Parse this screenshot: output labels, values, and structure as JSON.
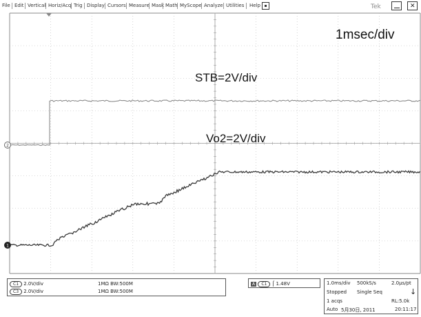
{
  "menu": {
    "items": [
      "File",
      "Edit",
      "Vertical",
      "Horiz/Acq",
      "Trig",
      "Display",
      "Cursors",
      "Measure",
      "Mask",
      "Math",
      "MyScope",
      "Analyze",
      "Utilities",
      "Help"
    ],
    "logo": "Tek"
  },
  "annotations": {
    "timebase": "1msec/div",
    "stb": "STB=2V/div",
    "vo2": "Vo2=2V/div"
  },
  "markers": {
    "ch_top": "2",
    "ch_bottom": "1"
  },
  "channels": [
    {
      "badge": "C1",
      "volts": "2.0V/div",
      "impedance": "1MΩ",
      "bw": "BW:500M"
    },
    {
      "badge": "C3",
      "volts": "2.0V/div",
      "impedance": "1MΩ",
      "bw": "BW:500M"
    }
  ],
  "trigger": {
    "source_box": "A",
    "badge": "C1",
    "level": "1.48V"
  },
  "acq": {
    "timebase": "1.0ms/div",
    "rate": "500kS/s",
    "per_pt": "2.0µs/pt",
    "state": "Stopped",
    "mode": "Single Seq",
    "acqs": "1 acqs",
    "rl": "RL:5.0k",
    "trigger_mode": "Auto",
    "date": "5月30日, 2011",
    "time": "20:11:17"
  },
  "colors": {
    "grid": "#b5b5b5",
    "trace_top": "#8a8a8a",
    "trace_bottom": "#3a3a3a",
    "axis": "#9a9a9a"
  }
}
